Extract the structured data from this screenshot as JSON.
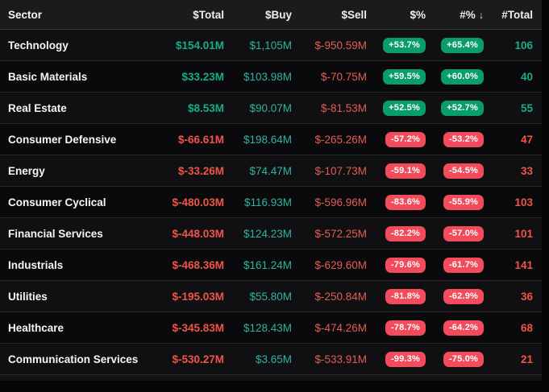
{
  "table": {
    "columns": [
      {
        "label": "Sector"
      },
      {
        "label": "$Total"
      },
      {
        "label": "$Buy"
      },
      {
        "label": "$Sell"
      },
      {
        "label": "$%"
      },
      {
        "label": "#%",
        "sorted": "desc"
      },
      {
        "label": "#Total"
      }
    ],
    "sort_icon": "↓",
    "rows": [
      {
        "sector": "Technology",
        "total": "$154.01M",
        "buy": "$1,105M",
        "sell": "$-950.59M",
        "pct_dollar": "+53.7%",
        "pct_count": "+65.4%",
        "count": "106"
      },
      {
        "sector": "Basic Materials",
        "total": "$33.23M",
        "buy": "$103.98M",
        "sell": "$-70.75M",
        "pct_dollar": "+59.5%",
        "pct_count": "+60.0%",
        "count": "40"
      },
      {
        "sector": "Real Estate",
        "total": "$8.53M",
        "buy": "$90.07M",
        "sell": "$-81.53M",
        "pct_dollar": "+52.5%",
        "pct_count": "+52.7%",
        "count": "55"
      },
      {
        "sector": "Consumer Defensive",
        "total": "$-66.61M",
        "buy": "$198.64M",
        "sell": "$-265.26M",
        "pct_dollar": "-57.2%",
        "pct_count": "-53.2%",
        "count": "47"
      },
      {
        "sector": "Energy",
        "total": "$-33.26M",
        "buy": "$74.47M",
        "sell": "$-107.73M",
        "pct_dollar": "-59.1%",
        "pct_count": "-54.5%",
        "count": "33"
      },
      {
        "sector": "Consumer Cyclical",
        "total": "$-480.03M",
        "buy": "$116.93M",
        "sell": "$-596.96M",
        "pct_dollar": "-83.6%",
        "pct_count": "-55.9%",
        "count": "103"
      },
      {
        "sector": "Financial Services",
        "total": "$-448.03M",
        "buy": "$124.23M",
        "sell": "$-572.25M",
        "pct_dollar": "-82.2%",
        "pct_count": "-57.0%",
        "count": "101"
      },
      {
        "sector": "Industrials",
        "total": "$-468.36M",
        "buy": "$161.24M",
        "sell": "$-629.60M",
        "pct_dollar": "-79.6%",
        "pct_count": "-61.7%",
        "count": "141"
      },
      {
        "sector": "Utilities",
        "total": "$-195.03M",
        "buy": "$55.80M",
        "sell": "$-250.84M",
        "pct_dollar": "-81.8%",
        "pct_count": "-62.9%",
        "count": "36"
      },
      {
        "sector": "Healthcare",
        "total": "$-345.83M",
        "buy": "$128.43M",
        "sell": "$-474.26M",
        "pct_dollar": "-78.7%",
        "pct_count": "-64.2%",
        "count": "68"
      },
      {
        "sector": "Communication Services",
        "total": "$-530.27M",
        "buy": "$3.65M",
        "sell": "$-533.91M",
        "pct_dollar": "-99.3%",
        "pct_count": "-75.0%",
        "count": "21"
      }
    ]
  },
  "colors": {
    "positive_text": "#17ad87",
    "negative_text": "#f05449",
    "buy_text": "#31b2a0",
    "sell_text": "#e25d55",
    "badge_green_bg": "#099c6c",
    "badge_red_bg": "#f24b5b",
    "header_bg": "#1b1b1e",
    "row_odd_bg": "#101013",
    "row_even_bg": "#0a0a0c"
  }
}
